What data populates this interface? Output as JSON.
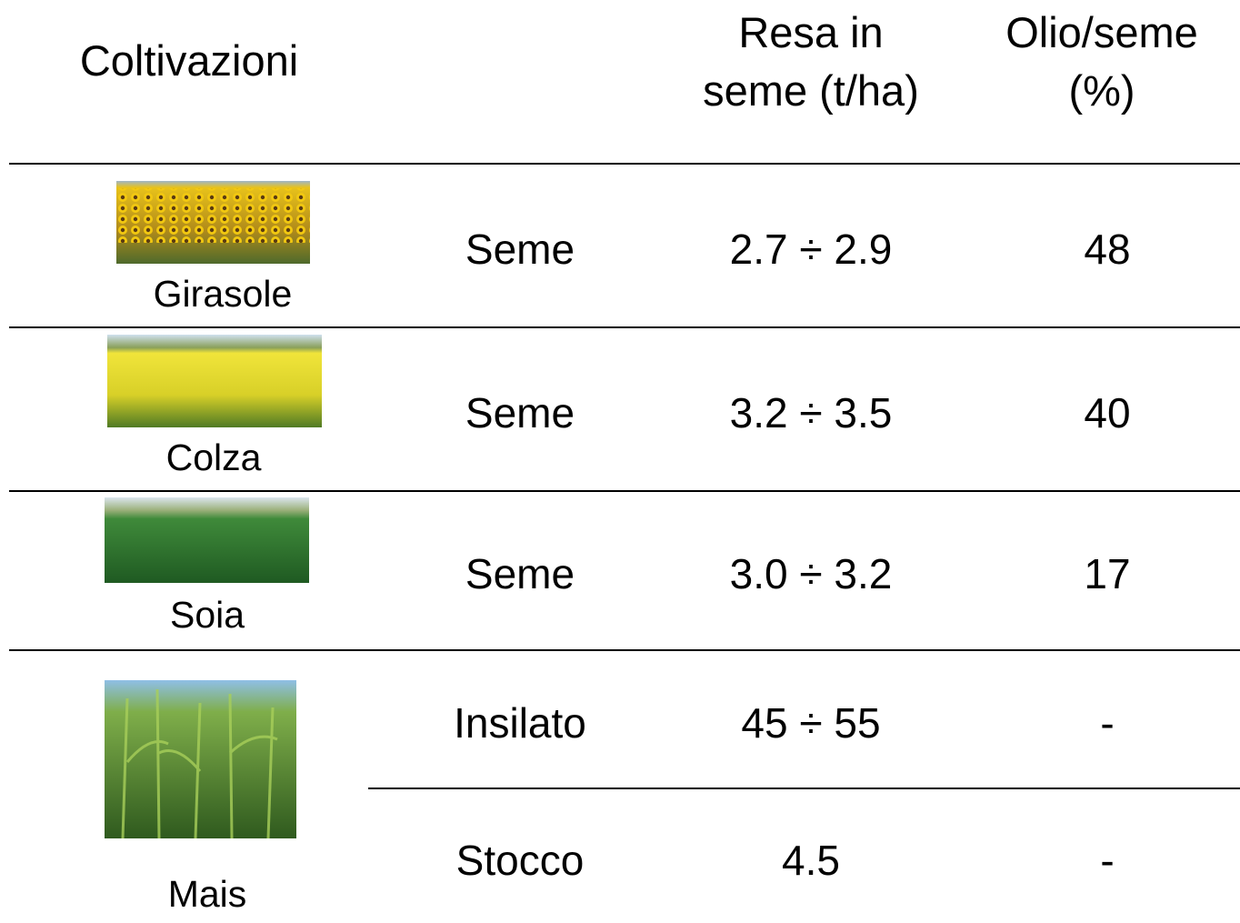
{
  "table": {
    "header": {
      "crop": "Coltivazioni",
      "yield": "Resa in\nseme (t/ha)",
      "oil": "Olio/seme\n(%)"
    },
    "rows": [
      {
        "crop": "Girasole",
        "parts": [
          {
            "part": "Seme",
            "yield": "2.7 ÷ 2.9",
            "oil": 48
          }
        ]
      },
      {
        "crop": "Colza",
        "parts": [
          {
            "part": "Seme",
            "yield": "3.2 ÷ 3.5",
            "oil": 40
          }
        ]
      },
      {
        "crop": "Soia",
        "parts": [
          {
            "part": "Seme",
            "yield": "3.0 ÷ 3.2",
            "oil": 17
          }
        ]
      },
      {
        "crop": "Mais",
        "parts": [
          {
            "part": "Insilato",
            "yield": "45 ÷ 55",
            "oil": "-"
          },
          {
            "part": "Stocco",
            "yield": "4.5",
            "oil": "-"
          }
        ]
      }
    ]
  }
}
